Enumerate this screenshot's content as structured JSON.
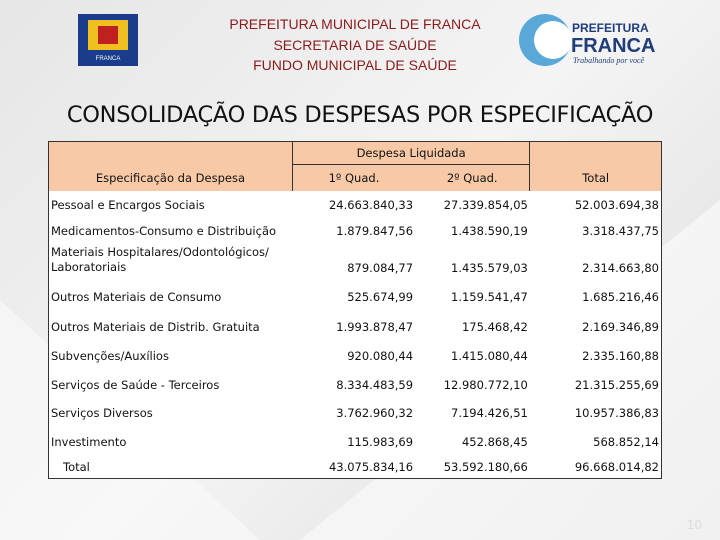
{
  "header": {
    "lines": [
      "PREFEITURA MUNICIPAL DE FRANCA",
      "SECRETARIA DE SAÚDE",
      "FUNDO MUNICIPAL DE SAÚDE"
    ],
    "crest_label": "FRANCA",
    "logo": {
      "top": "PREFEITURA",
      "name": "FRANCA",
      "slogan": "Trabalhando por você"
    }
  },
  "title": "CONSOLIDAÇÃO DAS DESPESAS POR ESPECIFICAÇÃO",
  "table": {
    "headers": {
      "description": "Especificação da Despesa",
      "group": "Despesa Liquidada",
      "q1": "1º Quad.",
      "q2": "2º Quad.",
      "total": "Total"
    },
    "rows": [
      [
        "Pessoal e Encargos Sociais",
        "24.663.840,33",
        "27.339.854,05",
        "52.003.694,38"
      ],
      [
        "Medicamentos-Consumo e Distribuição",
        "1.879.847,56",
        "1.438.590,19",
        "3.318.437,75"
      ],
      [
        "Materiais Hospitalares/Odontológicos/ Laboratoriais",
        "879.084,77",
        "1.435.579,03",
        "2.314.663,80"
      ],
      [
        "Outros Materiais de Consumo",
        "525.674,99",
        "1.159.541,47",
        "1.685.216,46"
      ],
      [
        "Outros Materiais de Distrib. Gratuita",
        "1.993.878,47",
        "175.468,42",
        "2.169.346,89"
      ],
      [
        "Subvenções/Auxílios",
        "920.080,44",
        "1.415.080,44",
        "2.335.160,88"
      ],
      [
        "Serviços de Saúde - Terceiros",
        "8.334.483,59",
        "12.980.772,10",
        "21.315.255,69"
      ],
      [
        "Serviços Diversos",
        "3.762.960,32",
        "7.194.426,51",
        "10.957.386,83"
      ],
      [
        "Investimento",
        "115.983,69",
        "452.868,45",
        "568.852,14"
      ],
      [
        "Total",
        "43.075.834,16",
        "53.592.180,66",
        "96.668.014,82"
      ]
    ]
  },
  "page_number": "10"
}
